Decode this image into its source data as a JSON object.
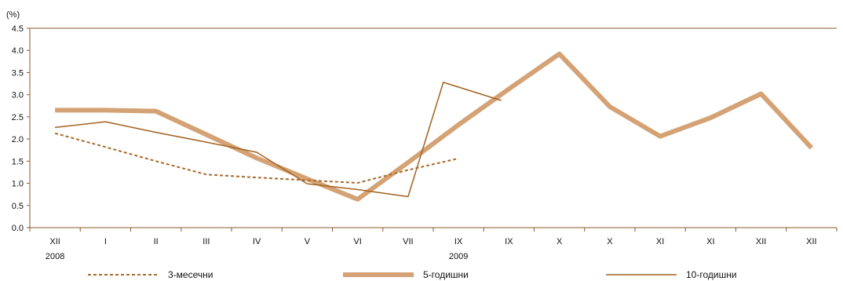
{
  "chart_data": {
    "type": "line",
    "title": "",
    "xlabel": "",
    "ylabel": "(%)",
    "ylim": [
      0,
      4.5
    ],
    "yticks": [
      "0.0",
      "0.5",
      "1.0",
      "1.5",
      "2.0",
      "2.5",
      "3.0",
      "3.5",
      "4.0",
      "4.5"
    ],
    "categories": [
      "XII",
      "I",
      "II",
      "III",
      "IV",
      "V",
      "VI",
      "VII",
      "IX",
      "IX",
      "X",
      "X",
      "XI",
      "XI",
      "XII",
      "XII"
    ],
    "year_labels": [
      {
        "index": 0,
        "label": "2008"
      },
      {
        "index": 8,
        "label": "2009"
      }
    ],
    "grid": false,
    "legend": "bottom",
    "series": [
      {
        "name": "3-месечни",
        "style": "dashed",
        "color": "#a86a2c",
        "points": [
          [
            0,
            2.13
          ],
          [
            1,
            1.82
          ],
          [
            2,
            1.5
          ],
          [
            3,
            1.2
          ],
          [
            4,
            1.13
          ],
          [
            5,
            1.07
          ],
          [
            6,
            1.01
          ],
          [
            7,
            1.3
          ],
          [
            8,
            1.56
          ]
        ]
      },
      {
        "name": "5-годишни",
        "style": "thick",
        "color": "#d4a274",
        "points": [
          [
            0,
            2.65
          ],
          [
            1,
            2.65
          ],
          [
            2,
            2.63
          ],
          [
            3,
            2.1
          ],
          [
            4,
            1.57
          ],
          [
            5,
            1.1
          ],
          [
            6,
            0.64
          ],
          [
            7,
            1.47
          ],
          [
            8,
            2.32
          ],
          [
            9,
            3.13
          ],
          [
            10,
            3.92
          ],
          [
            11,
            2.73
          ],
          [
            12,
            2.06
          ],
          [
            13,
            2.48
          ],
          [
            14,
            3.02
          ],
          [
            15,
            1.8
          ]
        ]
      },
      {
        "name": "10-годишни",
        "style": "thin",
        "color": "#a2621f",
        "points": [
          [
            0,
            2.26
          ],
          [
            1,
            2.39
          ],
          [
            2,
            2.15
          ],
          [
            3,
            1.93
          ],
          [
            4,
            1.7
          ],
          [
            5,
            0.99
          ],
          [
            6,
            0.86
          ],
          [
            7,
            0.7
          ],
          [
            7.7,
            3.28
          ],
          [
            8.85,
            2.87
          ]
        ]
      }
    ]
  }
}
